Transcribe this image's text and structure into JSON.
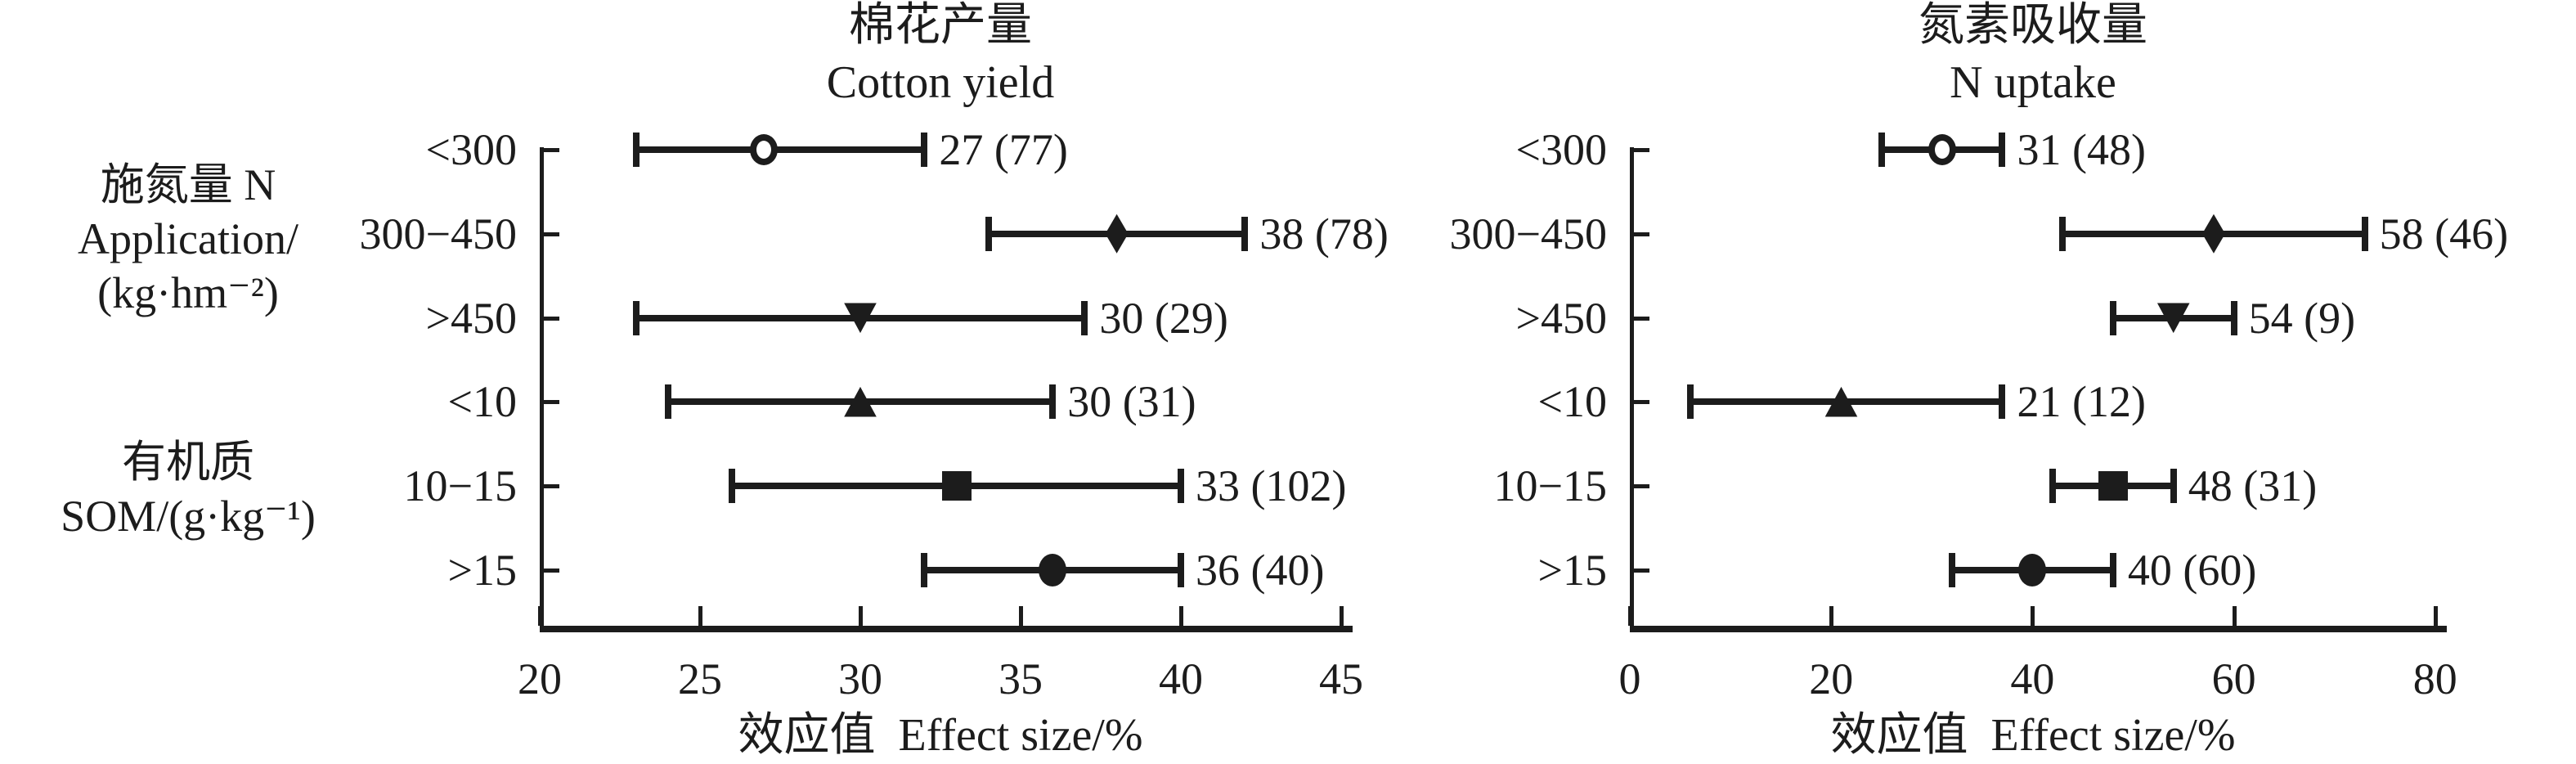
{
  "figure": {
    "background": "#ffffff",
    "ink_color": "#1c1c1c",
    "description": "Meta-analysis forest plots of effect sizes (mean and 95% CI) for cotton yield and N uptake grouped by N application rate and soil organic matter"
  },
  "y_axis_groups": [
    {
      "lines": [
        "施氮量 N",
        "Application/",
        "(kg·hm⁻²)"
      ]
    },
    {
      "lines": [
        "有机质",
        "SOM/(g·kg⁻¹)"
      ]
    }
  ],
  "chart_data": [
    {
      "type": "scatter",
      "style": "horizontal-errorbar-forest",
      "title": "棉花产量",
      "title_en": "Cotton yield",
      "xlabel": "效应值 Effect size/%",
      "xlim": [
        20,
        45
      ],
      "xticks": [
        20,
        25,
        30,
        35,
        40,
        45
      ],
      "grid": false,
      "categories": [
        "<300",
        "300−450",
        ">450",
        "<10",
        "10−15",
        ">15"
      ],
      "points": [
        {
          "category": "<300",
          "marker": "circle-open",
          "mean": 27,
          "ci_low": 23,
          "ci_high": 32,
          "n": 77,
          "label": "27 (77)"
        },
        {
          "category": "300−450",
          "marker": "diamond-filled",
          "mean": 38,
          "ci_low": 34,
          "ci_high": 42,
          "n": 78,
          "label": "38 (78)"
        },
        {
          "category": ">450",
          "marker": "triangle-down-filled",
          "mean": 30,
          "ci_low": 23,
          "ci_high": 37,
          "n": 29,
          "label": "30 (29)"
        },
        {
          "category": "<10",
          "marker": "triangle-up-filled",
          "mean": 30,
          "ci_low": 24,
          "ci_high": 36,
          "n": 31,
          "label": "30 (31)"
        },
        {
          "category": "10−15",
          "marker": "square-filled",
          "mean": 33,
          "ci_low": 26,
          "ci_high": 40,
          "n": 102,
          "label": "33 (102)"
        },
        {
          "category": ">15",
          "marker": "circle-filled",
          "mean": 36,
          "ci_low": 32,
          "ci_high": 40,
          "n": 40,
          "label": "36 (40)"
        }
      ]
    },
    {
      "type": "scatter",
      "style": "horizontal-errorbar-forest",
      "title": "氮素吸收量",
      "title_en": "N uptake",
      "xlabel": "效应值 Effect size/%",
      "xlim": [
        0,
        80
      ],
      "xticks": [
        0,
        20,
        40,
        60,
        80
      ],
      "grid": false,
      "categories": [
        "<300",
        "300−450",
        ">450",
        "<10",
        "10−15",
        ">15"
      ],
      "points": [
        {
          "category": "<300",
          "marker": "circle-open",
          "mean": 31,
          "ci_low": 25,
          "ci_high": 37,
          "n": 48,
          "label": "31 (48)"
        },
        {
          "category": "300−450",
          "marker": "diamond-filled",
          "mean": 58,
          "ci_low": 43,
          "ci_high": 73,
          "n": 46,
          "label": "58 (46)"
        },
        {
          "category": ">450",
          "marker": "triangle-down-filled",
          "mean": 54,
          "ci_low": 48,
          "ci_high": 60,
          "n": 9,
          "label": "54 (9)"
        },
        {
          "category": "<10",
          "marker": "triangle-up-filled",
          "mean": 21,
          "ci_low": 6,
          "ci_high": 37,
          "n": 12,
          "label": "21 (12)"
        },
        {
          "category": "10−15",
          "marker": "square-filled",
          "mean": 48,
          "ci_low": 42,
          "ci_high": 54,
          "n": 31,
          "label": "48 (31)"
        },
        {
          "category": ">15",
          "marker": "circle-filled",
          "mean": 40,
          "ci_low": 32,
          "ci_high": 48,
          "n": 60,
          "label": "40 (60)"
        }
      ]
    }
  ]
}
